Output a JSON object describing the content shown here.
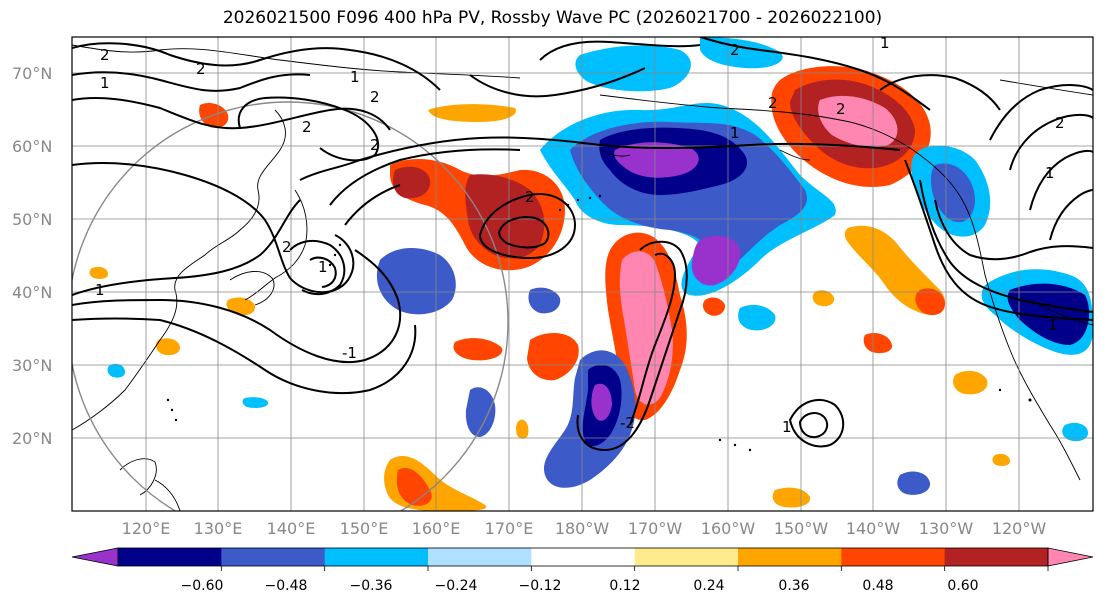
{
  "title": "2026021500 F096 400 hPa PV, Rossby Wave PC (2026021700 - 2026022100)",
  "lat_labels": [
    "70°N",
    "60°N",
    "50°N",
    "40°N",
    "30°N",
    "20°N"
  ],
  "lon_labels": [
    "120°E",
    "130°E",
    "140°E",
    "150°E",
    "160°E",
    "170°E",
    "180°W",
    "170°W",
    "160°W",
    "150°W",
    "140°W",
    "130°W",
    "120°W"
  ],
  "colorbar": {
    "ticks": [
      "−0.60",
      "−0.48",
      "−0.36",
      "−0.24",
      "−0.12",
      "0.12",
      "0.24",
      "0.36",
      "0.48",
      "0.60"
    ],
    "colors": [
      "#9932cc",
      "#00008b",
      "#3c5ac8",
      "#00bfff",
      "#b0e0ff",
      "#ffffff",
      "#ffeb8c",
      "#ffa500",
      "#ff4500",
      "#b22222",
      "#ff86b0"
    ]
  },
  "contour_labels": [
    "2",
    "1",
    "2",
    "2",
    "1",
    "2",
    "2",
    "1",
    "2",
    "1",
    "2",
    "-1",
    "2",
    "1",
    "2",
    "1",
    "2",
    "1",
    "1",
    "2",
    "1",
    "-2"
  ],
  "colors": {
    "purple": "#9932cc",
    "navy": "#00008b",
    "blue": "#3c5ac8",
    "cyan": "#00bfff",
    "lightblue": "#b0e0ff",
    "yellow": "#ffeb8c",
    "orange": "#ffa500",
    "red": "#ff4500",
    "darkred": "#b22222",
    "pink": "#ff86b0"
  }
}
